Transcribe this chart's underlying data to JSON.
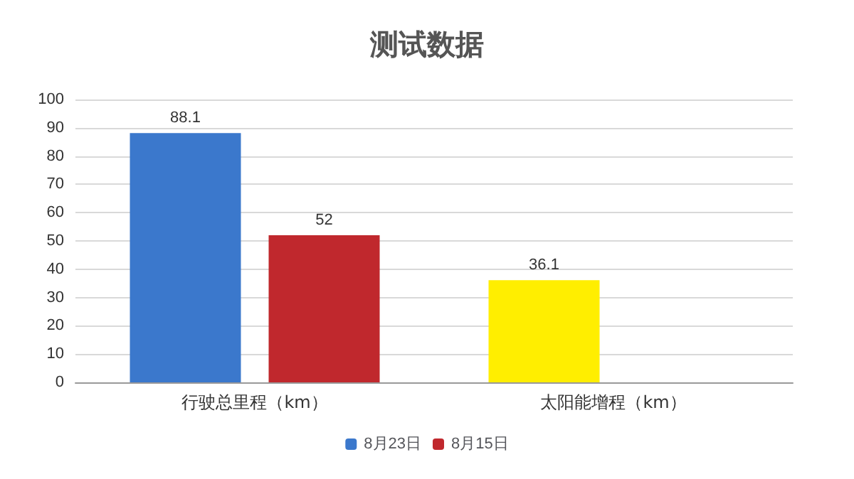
{
  "chart_data": {
    "type": "bar",
    "title": "测试数据",
    "categories": [
      "行驶总里程（km）",
      "太阳能增程（km）"
    ],
    "series": [
      {
        "name": "8月23日",
        "color": "#3b78cc",
        "colors": [
          "#3b78cc",
          "#ffee00"
        ],
        "values": [
          88.1,
          36.1
        ]
      },
      {
        "name": "8月15日",
        "color": "#c0282d",
        "values": [
          52,
          null
        ]
      }
    ],
    "ylim": [
      0,
      100
    ],
    "yticks": [
      0,
      10,
      20,
      30,
      40,
      50,
      60,
      70,
      80,
      90,
      100
    ],
    "grid": "y",
    "legend": "bottom",
    "data_labels": true
  }
}
